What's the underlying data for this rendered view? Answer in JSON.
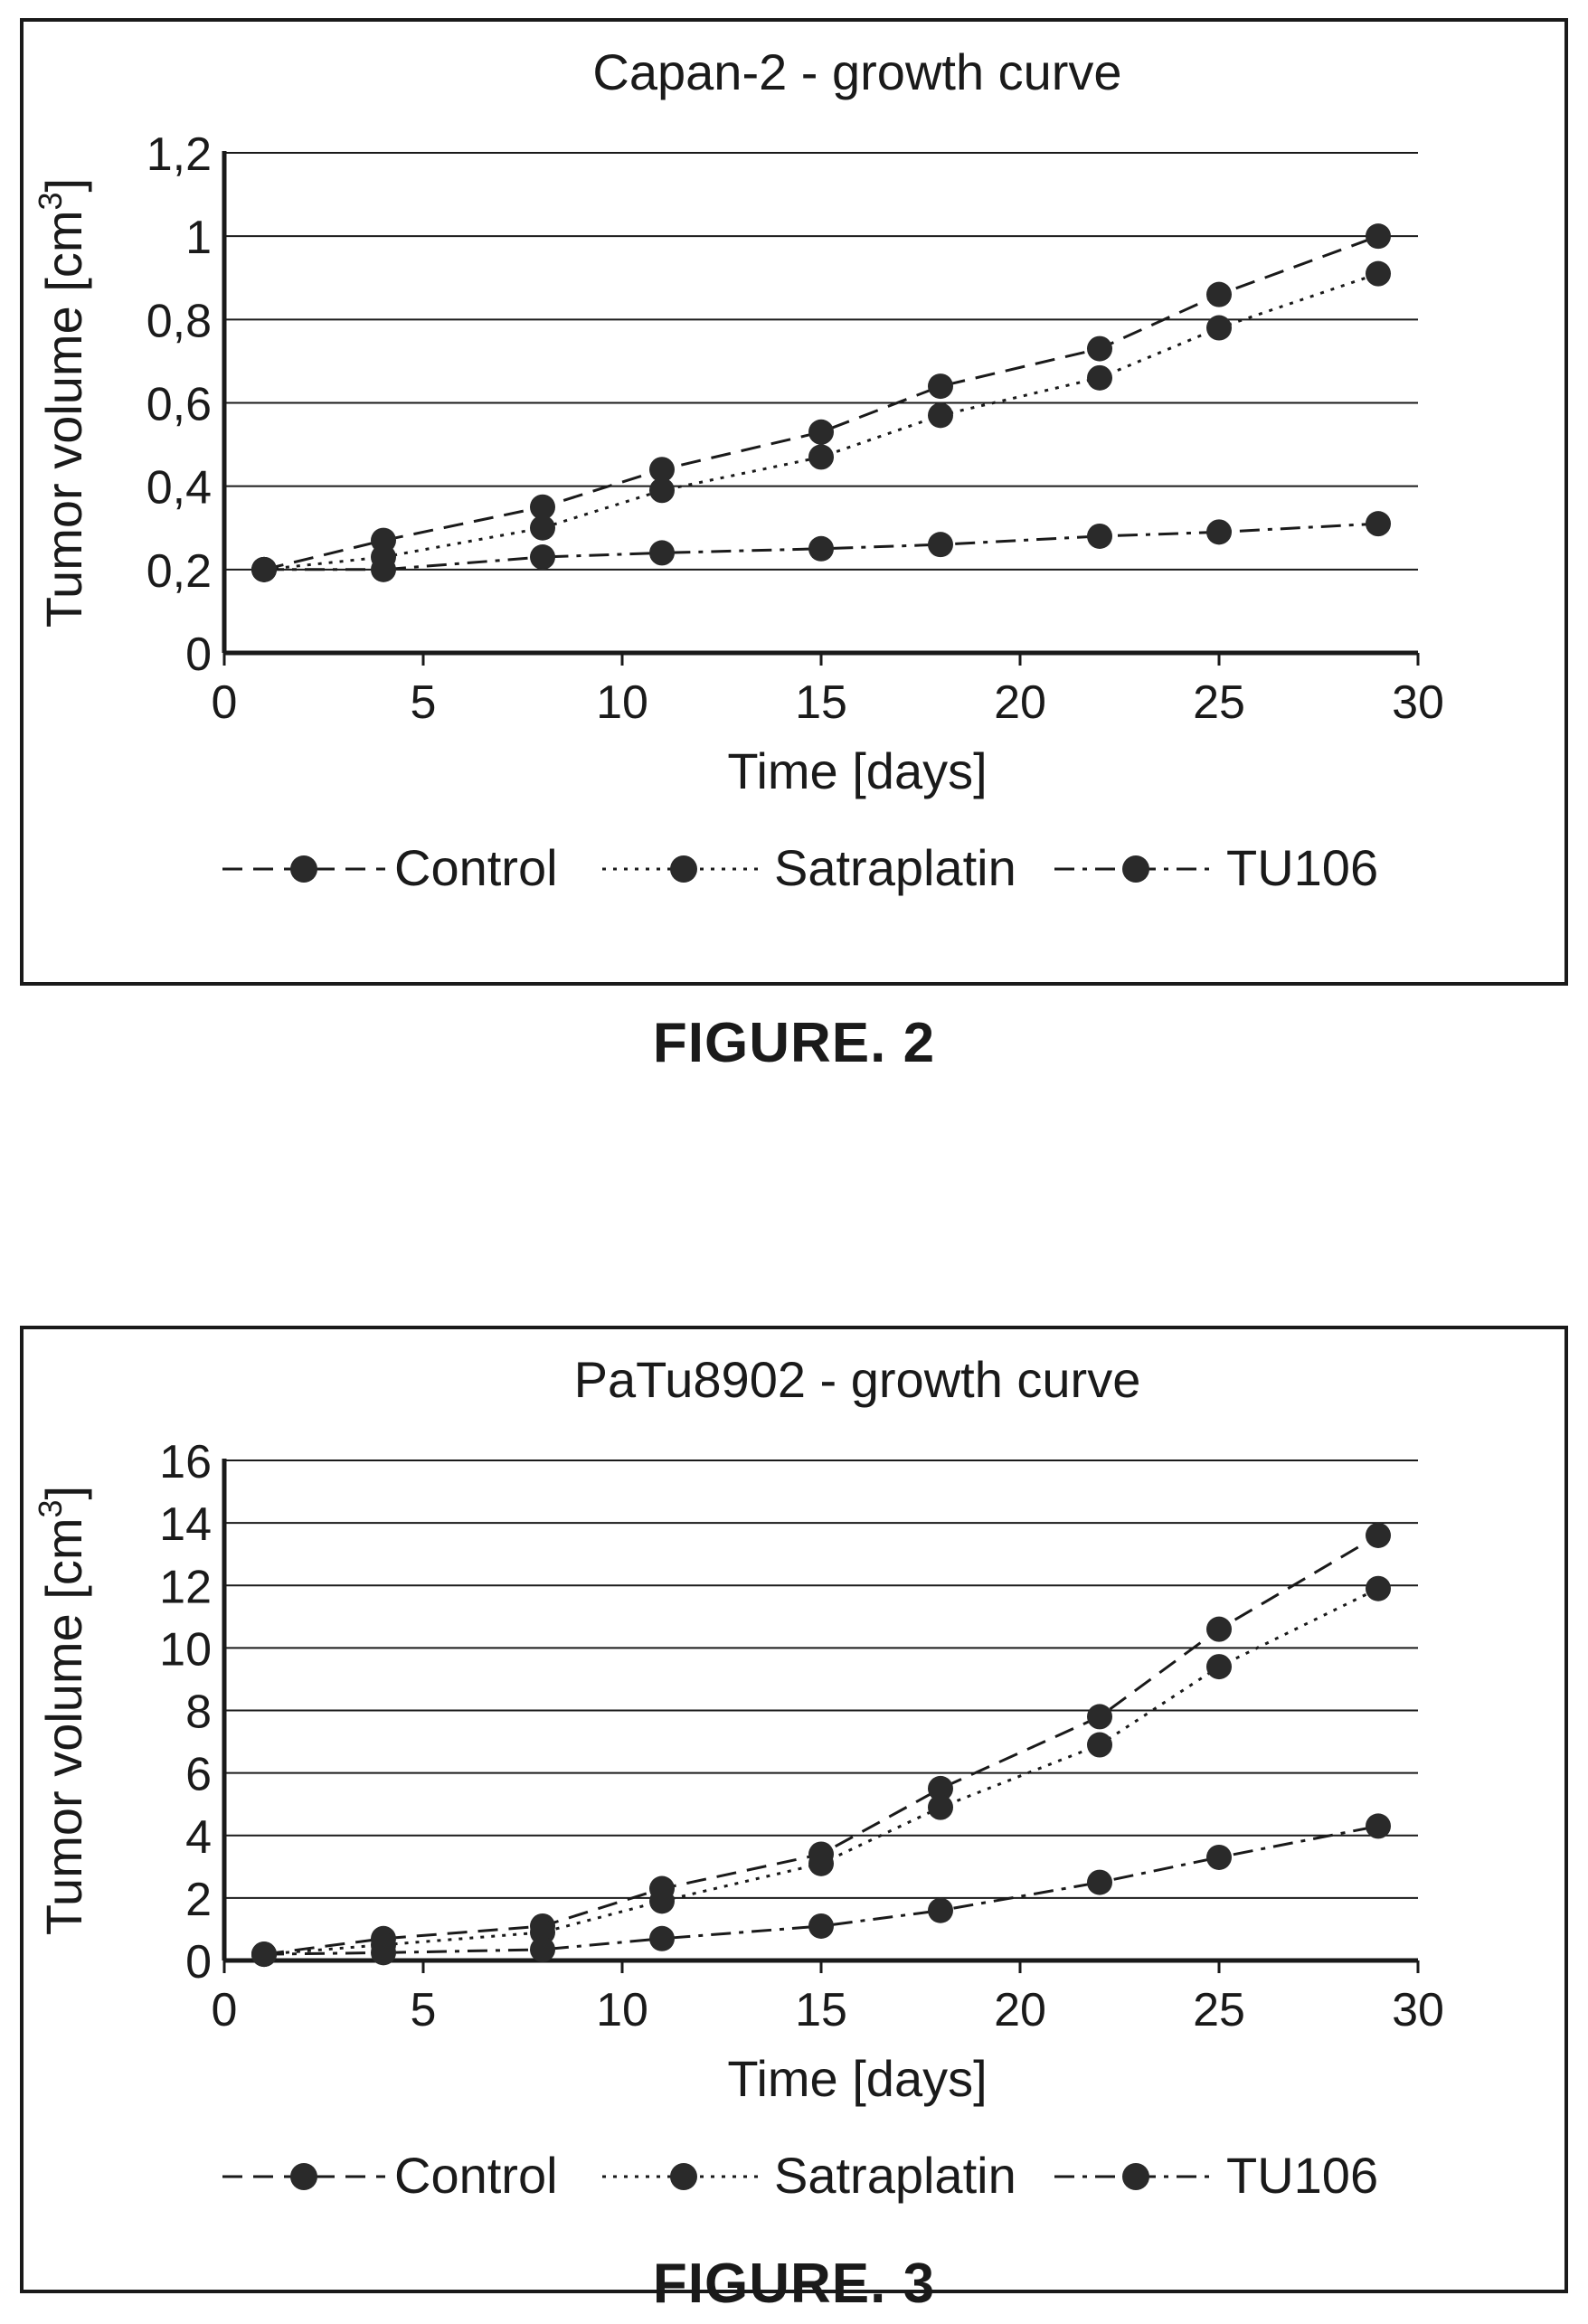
{
  "figures": [
    {
      "caption": "FIGURE. 2"
    },
    {
      "caption": "FIGURE. 3"
    }
  ],
  "chart_data": [
    {
      "type": "line",
      "title": "Capan-2 - growth curve",
      "xlabel": "Time [days]",
      "ylabel_main": "Tumor volume [cm",
      "ylabel_sup": "3",
      "ylabel_close": "]",
      "xlim": [
        0,
        30
      ],
      "ylim": [
        0,
        1.2
      ],
      "xticks": [
        0,
        5,
        10,
        15,
        20,
        25,
        30
      ],
      "xtick_labels": [
        "0",
        "5",
        "10",
        "15",
        "20",
        "25",
        "30"
      ],
      "yticks": [
        0,
        0.2,
        0.4,
        0.6,
        0.8,
        1.0,
        1.2
      ],
      "ytick_labels": [
        "0",
        "0,2",
        "0,4",
        "0,6",
        "0,8",
        "1",
        "1,2"
      ],
      "grid": "horizontal",
      "legend_position": "bottom",
      "series": [
        {
          "name": "Control",
          "dash": "dashed",
          "x": [
            1,
            4,
            8,
            11,
            15,
            18,
            22,
            25,
            29
          ],
          "y": [
            0.2,
            0.27,
            0.35,
            0.44,
            0.53,
            0.64,
            0.73,
            0.86,
            1.0
          ]
        },
        {
          "name": "Satraplatin",
          "dash": "dotted",
          "x": [
            1,
            4,
            8,
            11,
            15,
            18,
            22,
            25,
            29
          ],
          "y": [
            0.2,
            0.23,
            0.3,
            0.39,
            0.47,
            0.57,
            0.66,
            0.78,
            0.91
          ]
        },
        {
          "name": "TU106",
          "dash": "dashdot",
          "x": [
            1,
            4,
            8,
            11,
            15,
            18,
            22,
            25,
            29
          ],
          "y": [
            0.2,
            0.2,
            0.23,
            0.24,
            0.25,
            0.26,
            0.28,
            0.29,
            0.31
          ]
        }
      ]
    },
    {
      "type": "line",
      "title": "PaTu8902 - growth curve",
      "xlabel": "Time [days]",
      "ylabel_main": "Tumor volume [cm",
      "ylabel_sup": "3",
      "ylabel_close": "]",
      "xlim": [
        0,
        30
      ],
      "ylim": [
        0,
        16
      ],
      "xticks": [
        0,
        5,
        10,
        15,
        20,
        25,
        30
      ],
      "xtick_labels": [
        "0",
        "5",
        "10",
        "15",
        "20",
        "25",
        "30"
      ],
      "yticks": [
        0,
        2,
        4,
        6,
        8,
        10,
        12,
        14,
        16
      ],
      "ytick_labels": [
        "0",
        "2",
        "4",
        "6",
        "8",
        "10",
        "12",
        "14",
        "16"
      ],
      "grid": "horizontal",
      "legend_position": "bottom",
      "series": [
        {
          "name": "Control",
          "dash": "dashed",
          "x": [
            1,
            4,
            8,
            11,
            15,
            18,
            22,
            25,
            29
          ],
          "y": [
            0.2,
            0.7,
            1.1,
            2.3,
            3.4,
            5.5,
            7.8,
            10.6,
            13.6
          ]
        },
        {
          "name": "Satraplatin",
          "dash": "dotted",
          "x": [
            1,
            4,
            8,
            11,
            15,
            18,
            22,
            25,
            29
          ],
          "y": [
            0.2,
            0.5,
            0.9,
            1.9,
            3.1,
            4.9,
            6.9,
            9.4,
            11.9
          ]
        },
        {
          "name": "TU106",
          "dash": "dashdot",
          "x": [
            1,
            4,
            8,
            11,
            15,
            18,
            22,
            25,
            29
          ],
          "y": [
            0.2,
            0.25,
            0.35,
            0.7,
            1.1,
            1.6,
            2.5,
            3.3,
            4.3
          ]
        }
      ]
    }
  ]
}
